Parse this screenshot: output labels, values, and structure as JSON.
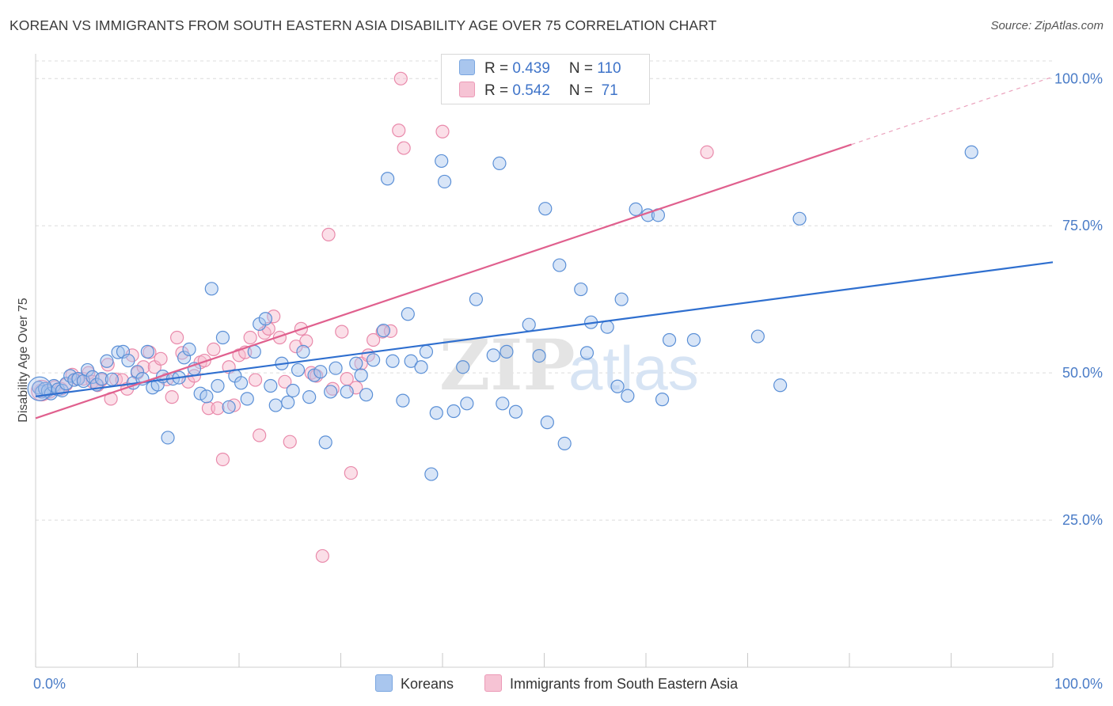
{
  "title": "KOREAN VS IMMIGRANTS FROM SOUTH EASTERN ASIA DISABILITY AGE OVER 75 CORRELATION CHART",
  "source": "Source: ZipAtlas.com",
  "legend": {
    "rows": [
      {
        "r_label": "R = ",
        "r_value": "0.439",
        "n_label": "N = ",
        "n_value": "110"
      },
      {
        "r_label": "R = ",
        "r_value": "0.542",
        "n_label": "N = ",
        "n_value": " 71"
      }
    ]
  },
  "colors": {
    "korean_fill": "#a9c6ee",
    "korean_stroke": "#5a8fd6",
    "korean_line": "#2f6fcf",
    "sea_fill": "#f6b8cd",
    "sea_stroke": "#e98aab",
    "sea_line": "#e0608e",
    "grid": "#dcdcdc",
    "tick_text": "#4a7cc7"
  },
  "chart_data": {
    "type": "scatter",
    "title": "KOREAN VS IMMIGRANTS FROM SOUTH EASTERN ASIA DISABILITY AGE OVER 75 CORRELATION CHART",
    "xlabel": "",
    "ylabel": "Disability Age Over 75",
    "xlim": [
      0,
      100
    ],
    "ylim": [
      0,
      103
    ],
    "x_tick_labels": [
      "0.0%",
      "100.0%"
    ],
    "y_ticks": [
      25,
      50,
      75,
      100
    ],
    "y_tick_labels": [
      "25.0%",
      "50.0%",
      "75.0%",
      "100.0%"
    ],
    "grid": true,
    "legend_position": "bottom",
    "series": [
      {
        "name": "Koreans",
        "R": 0.439,
        "N": 110,
        "trend": {
          "x": [
            0,
            100
          ],
          "y": [
            46.0,
            68.8
          ]
        },
        "points": [
          [
            0.3,
            47.5
          ],
          [
            0.6,
            46.8
          ],
          [
            0.9,
            47.3
          ],
          [
            1.2,
            47.0
          ],
          [
            1.5,
            46.5
          ],
          [
            1.8,
            47.8
          ],
          [
            2.2,
            47.2
          ],
          [
            2.6,
            47.0
          ],
          [
            3.0,
            48.2
          ],
          [
            3.4,
            49.5
          ],
          [
            3.8,
            48.8
          ],
          [
            4.2,
            49.0
          ],
          [
            4.7,
            48.6
          ],
          [
            5.1,
            50.5
          ],
          [
            5.6,
            49.3
          ],
          [
            6.0,
            48.0
          ],
          [
            6.5,
            49.0
          ],
          [
            7.0,
            52.0
          ],
          [
            7.5,
            48.9
          ],
          [
            8.1,
            53.5
          ],
          [
            8.6,
            53.6
          ],
          [
            9.1,
            52.1
          ],
          [
            9.6,
            48.3
          ],
          [
            10.0,
            50.2
          ],
          [
            10.5,
            49.0
          ],
          [
            11.0,
            53.6
          ],
          [
            11.5,
            47.5
          ],
          [
            12.0,
            48.0
          ],
          [
            12.5,
            49.4
          ],
          [
            13.0,
            39.0
          ],
          [
            13.5,
            49.0
          ],
          [
            14.1,
            49.2
          ],
          [
            14.6,
            52.6
          ],
          [
            15.1,
            54.0
          ],
          [
            15.6,
            50.7
          ],
          [
            16.2,
            46.5
          ],
          [
            16.8,
            46.0
          ],
          [
            17.3,
            64.3
          ],
          [
            17.9,
            47.8
          ],
          [
            18.4,
            56.0
          ],
          [
            19.0,
            44.2
          ],
          [
            19.6,
            49.5
          ],
          [
            20.2,
            48.3
          ],
          [
            20.8,
            45.6
          ],
          [
            21.5,
            53.6
          ],
          [
            22.0,
            58.3
          ],
          [
            22.6,
            59.2
          ],
          [
            23.1,
            47.8
          ],
          [
            23.6,
            44.5
          ],
          [
            24.2,
            51.6
          ],
          [
            24.8,
            45.0
          ],
          [
            25.3,
            47.0
          ],
          [
            25.8,
            50.5
          ],
          [
            26.3,
            53.6
          ],
          [
            26.9,
            45.9
          ],
          [
            27.4,
            49.6
          ],
          [
            28.0,
            50.2
          ],
          [
            28.5,
            38.2
          ],
          [
            29.0,
            46.8
          ],
          [
            29.5,
            50.8
          ],
          [
            30.6,
            46.8
          ],
          [
            31.5,
            51.6
          ],
          [
            32.0,
            49.6
          ],
          [
            32.5,
            46.3
          ],
          [
            33.2,
            52.2
          ],
          [
            34.2,
            57.2
          ],
          [
            34.6,
            83.0
          ],
          [
            35.1,
            52.0
          ],
          [
            36.1,
            45.3
          ],
          [
            36.6,
            60.0
          ],
          [
            36.9,
            52.0
          ],
          [
            37.9,
            51.0
          ],
          [
            38.4,
            53.6
          ],
          [
            38.9,
            32.8
          ],
          [
            39.4,
            43.2
          ],
          [
            39.9,
            86.0
          ],
          [
            40.2,
            82.5
          ],
          [
            41.1,
            43.5
          ],
          [
            42.0,
            51.0
          ],
          [
            42.4,
            44.8
          ],
          [
            43.3,
            62.5
          ],
          [
            45.0,
            53.0
          ],
          [
            45.6,
            85.6
          ],
          [
            45.9,
            44.8
          ],
          [
            46.3,
            53.6
          ],
          [
            47.2,
            43.4
          ],
          [
            48.5,
            58.2
          ],
          [
            49.5,
            52.9
          ],
          [
            50.1,
            77.9
          ],
          [
            50.3,
            41.6
          ],
          [
            51.5,
            68.3
          ],
          [
            52.0,
            38.0
          ],
          [
            53.6,
            64.2
          ],
          [
            54.2,
            53.4
          ],
          [
            54.6,
            58.6
          ],
          [
            56.2,
            57.8
          ],
          [
            57.2,
            47.7
          ],
          [
            57.6,
            62.5
          ],
          [
            58.2,
            46.1
          ],
          [
            59.0,
            77.8
          ],
          [
            60.2,
            76.8
          ],
          [
            61.2,
            76.8
          ],
          [
            61.6,
            45.5
          ],
          [
            62.3,
            55.6
          ],
          [
            64.7,
            55.6
          ],
          [
            71.0,
            56.2
          ],
          [
            73.2,
            47.9
          ],
          [
            75.1,
            76.2
          ],
          [
            92.0,
            87.5
          ]
        ]
      },
      {
        "name": "Immigrants from South Eastern Asia",
        "R": 0.542,
        "N": 71,
        "trend": {
          "x": [
            0,
            80.2
          ],
          "y": [
            42.3,
            88.8
          ]
        },
        "trend_dashed": {
          "x": [
            80.2,
            100
          ],
          "y": [
            88.8,
            100.3
          ]
        },
        "points": [
          [
            0.5,
            47.0
          ],
          [
            0.9,
            47.3
          ],
          [
            1.4,
            46.8
          ],
          [
            1.9,
            47.6
          ],
          [
            2.5,
            47.3
          ],
          [
            3.0,
            48.0
          ],
          [
            3.6,
            49.7
          ],
          [
            4.1,
            49.0
          ],
          [
            4.7,
            49.0
          ],
          [
            5.2,
            50.0
          ],
          [
            5.6,
            48.5
          ],
          [
            6.1,
            47.9
          ],
          [
            6.5,
            48.8
          ],
          [
            7.1,
            51.4
          ],
          [
            7.4,
            45.6
          ],
          [
            7.9,
            48.9
          ],
          [
            8.5,
            48.8
          ],
          [
            9.0,
            47.3
          ],
          [
            9.5,
            53.0
          ],
          [
            10.0,
            50.0
          ],
          [
            10.6,
            51.0
          ],
          [
            11.2,
            53.5
          ],
          [
            11.7,
            51.0
          ],
          [
            12.3,
            52.4
          ],
          [
            12.9,
            48.9
          ],
          [
            13.4,
            45.9
          ],
          [
            13.9,
            56.0
          ],
          [
            14.4,
            53.4
          ],
          [
            15.0,
            48.5
          ],
          [
            15.6,
            49.5
          ],
          [
            16.2,
            51.8
          ],
          [
            16.6,
            52.1
          ],
          [
            17.0,
            44.0
          ],
          [
            17.5,
            54.0
          ],
          [
            17.9,
            44.0
          ],
          [
            18.4,
            35.3
          ],
          [
            19.0,
            51.0
          ],
          [
            19.5,
            44.5
          ],
          [
            20.0,
            53.0
          ],
          [
            20.6,
            53.5
          ],
          [
            21.1,
            56.0
          ],
          [
            21.6,
            48.8
          ],
          [
            22.0,
            39.4
          ],
          [
            22.5,
            56.8
          ],
          [
            22.9,
            57.5
          ],
          [
            23.4,
            59.6
          ],
          [
            24.0,
            56.0
          ],
          [
            24.5,
            48.5
          ],
          [
            25.0,
            38.3
          ],
          [
            25.6,
            54.5
          ],
          [
            26.1,
            57.5
          ],
          [
            26.6,
            55.4
          ],
          [
            27.1,
            50.0
          ],
          [
            27.6,
            49.5
          ],
          [
            28.2,
            18.9
          ],
          [
            28.8,
            73.5
          ],
          [
            29.2,
            47.3
          ],
          [
            30.1,
            57.0
          ],
          [
            30.6,
            49.0
          ],
          [
            31.0,
            33.0
          ],
          [
            31.5,
            47.5
          ],
          [
            32.0,
            51.6
          ],
          [
            32.7,
            53.0
          ],
          [
            33.2,
            55.6
          ],
          [
            34.1,
            57.0
          ],
          [
            34.9,
            57.1
          ],
          [
            35.7,
            91.2
          ],
          [
            36.2,
            88.2
          ],
          [
            35.9,
            100.0
          ],
          [
            40.0,
            91.0
          ],
          [
            66.0,
            87.5
          ]
        ]
      }
    ]
  },
  "bottom_legend": [
    {
      "label": "Koreans"
    },
    {
      "label": "Immigrants from South Eastern Asia"
    }
  ],
  "watermark": {
    "zip": "ZIP",
    "atlas": "atlas"
  }
}
